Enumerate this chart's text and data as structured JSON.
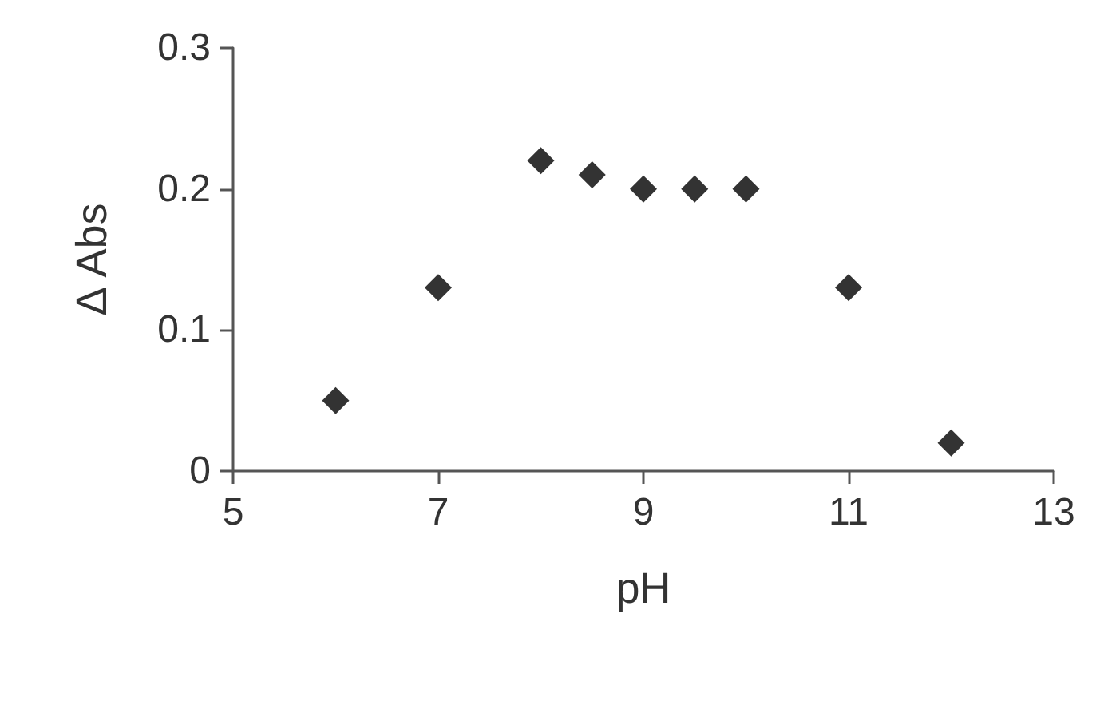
{
  "chart_data": {
    "type": "scatter",
    "xlabel": "pH",
    "ylabel": "Δ Abs",
    "x": [
      6,
      7,
      8,
      8.5,
      9,
      9.5,
      10,
      11,
      12
    ],
    "series": [
      {
        "color": "#000000",
        "values": [
          0.05,
          0.13,
          0.22,
          0.21,
          0.2,
          0.2,
          0.2,
          0.13,
          0.02
        ]
      }
    ],
    "xlim": [
      5,
      13
    ],
    "xticks": [
      5,
      7,
      9,
      11,
      13
    ],
    "ylim": [
      0,
      0.3
    ],
    "yticks": [
      0,
      0.1,
      0.2,
      0.3
    ],
    "grid": false,
    "marker": "diamond"
  }
}
